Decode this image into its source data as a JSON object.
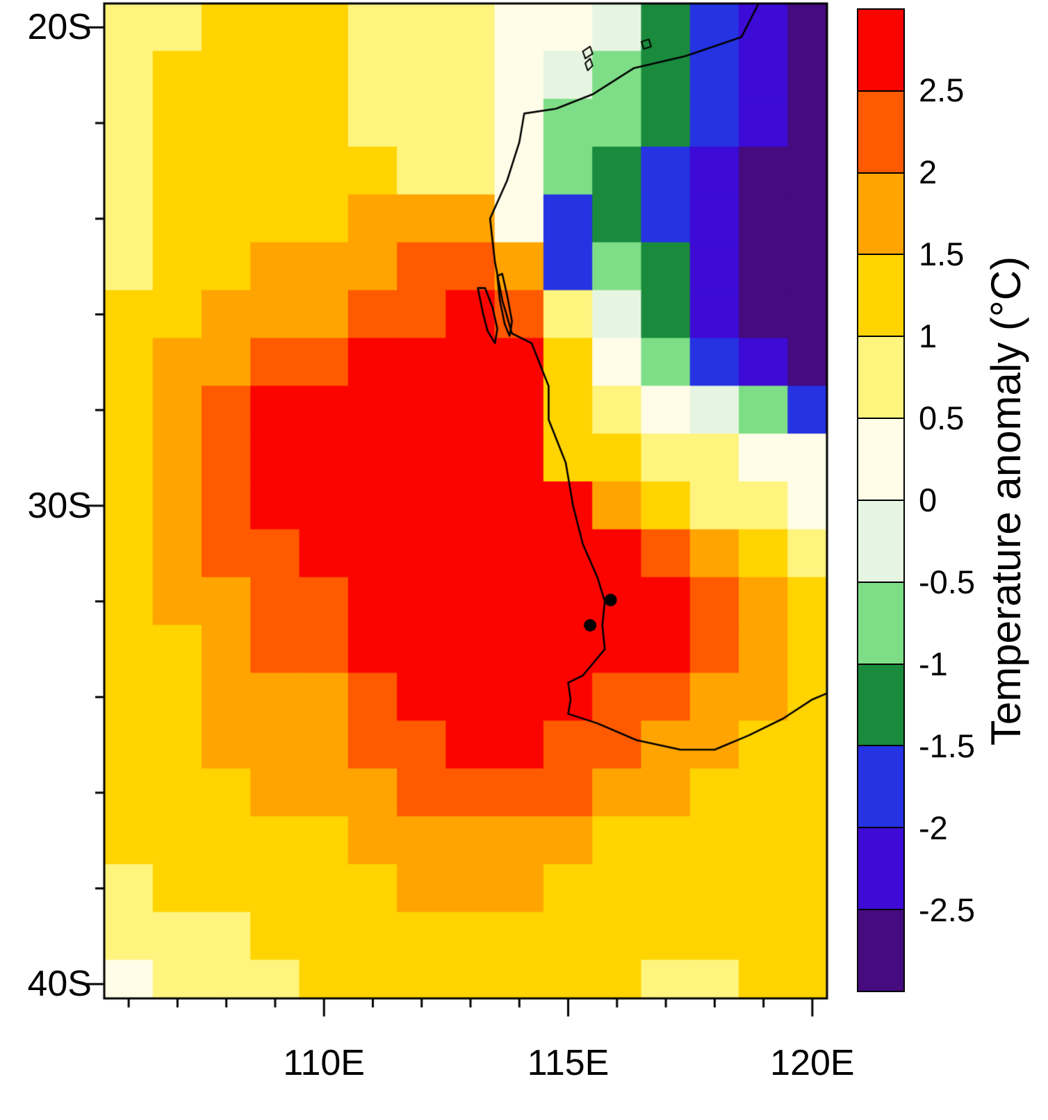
{
  "chart_data": {
    "type": "heatmap",
    "colorbar_label": "Temperature anomaly (°C)",
    "colorbar_tick_labels": [
      "2.5",
      "2",
      "1.5",
      "1",
      "0.5",
      "0",
      "-0.5",
      "-1",
      "-1.5",
      "-2",
      "-2.5"
    ],
    "levels": [
      -2.5,
      -2,
      -1.5,
      -1,
      -0.5,
      0,
      0.5,
      1,
      1.5,
      2,
      2.5
    ],
    "lon_range": [
      105.5,
      120.3
    ],
    "lat_range_south": [
      19.5,
      40.3
    ],
    "x_ticks": [
      {
        "lon": 110,
        "label": "110E"
      },
      {
        "lon": 115,
        "label": "115E"
      },
      {
        "lon": 120,
        "label": "120E"
      }
    ],
    "y_ticks": [
      {
        "lat": 20,
        "label": "20S"
      },
      {
        "lat": 30,
        "label": "30S"
      },
      {
        "lat": 40,
        "label": "40S"
      }
    ],
    "palette": [
      {
        "range": "< -2.5",
        "color": "#460B7E"
      },
      {
        "range": "-2.5 to -2",
        "color": "#3D0BD5"
      },
      {
        "range": "-2 to -1.5",
        "color": "#2533E2"
      },
      {
        "range": "-1.5 to -1",
        "color": "#1A8A3C"
      },
      {
        "range": "-1 to -0.5",
        "color": "#7EDE87"
      },
      {
        "range": "-0.5 to 0",
        "color": "#E6F5E1"
      },
      {
        "range": "0 to 0.5",
        "color": "#FFFDE7"
      },
      {
        "range": "0.5 to 1",
        "color": "#FFF47D"
      },
      {
        "range": "1 to 1.5",
        "color": "#FFD400"
      },
      {
        "range": "1.5 to 2",
        "color": "#FFA400"
      },
      {
        "range": "2 to 2.5",
        "color": "#FF5A00"
      },
      {
        "range": "> 2.5",
        "color": "#FB0400"
      }
    ],
    "grid": {
      "comment_units": "temperature anomaly class per 1-degree cell, west-to-east, north-to-south; chars index into class_chars -> palette",
      "lon_start": 105.5,
      "lat_start": 19.5,
      "cell_deg": 1.0,
      "ncols": 15,
      "nrows": 21,
      "class_chars": "0123456789AB",
      "rows": [
        "778887776653210",
        "788887776543210",
        "788887776443210",
        "788888776432100",
        "788889996232100",
        "788999AA9243100",
        "88999AABA753100",
        "899AABBBB864210",
        "89ABBBBBB876542",
        "89ABBBBBB887766",
        "89ABBBBBBB98776",
        "89AABBBBBBBA987",
        "899AABBBBBBBA98",
        "889AABBBBBBBA98",
        "88999ABBBBAA998",
        "88999AABBAA9988",
        "888999AAAA99888",
        "888889999988888",
        "788888999888888",
        "777888888888888",
        "677788888887788"
      ]
    },
    "coastline": [
      [
        118.9,
        19.5
      ],
      [
        118.55,
        20.2
      ],
      [
        117.4,
        20.6
      ],
      [
        116.35,
        20.85
      ],
      [
        115.5,
        21.4
      ],
      [
        114.75,
        21.7
      ],
      [
        114.1,
        21.8
      ],
      [
        114.0,
        22.4
      ],
      [
        113.75,
        23.2
      ],
      [
        113.4,
        24.0
      ],
      [
        113.5,
        24.9
      ],
      [
        113.65,
        25.7
      ],
      [
        113.85,
        26.4
      ],
      [
        114.25,
        26.6
      ],
      [
        114.6,
        27.5
      ],
      [
        114.6,
        28.2
      ],
      [
        114.95,
        29.1
      ],
      [
        115.1,
        30.0
      ],
      [
        115.3,
        30.8
      ],
      [
        115.6,
        31.5
      ],
      [
        115.75,
        32.0
      ],
      [
        115.7,
        32.5
      ],
      [
        115.75,
        33.0
      ],
      [
        115.3,
        33.55
      ],
      [
        115.0,
        33.7
      ],
      [
        115.05,
        34.05
      ],
      [
        115.0,
        34.35
      ],
      [
        115.6,
        34.55
      ],
      [
        116.4,
        34.9
      ],
      [
        117.3,
        35.1
      ],
      [
        118.0,
        35.1
      ],
      [
        118.7,
        34.8
      ],
      [
        119.4,
        34.45
      ],
      [
        120.0,
        34.05
      ],
      [
        120.35,
        33.9
      ]
    ],
    "peninsulas": [
      [
        [
          113.15,
          25.45
        ],
        [
          113.25,
          25.95
        ],
        [
          113.35,
          26.35
        ],
        [
          113.5,
          26.6
        ],
        [
          113.55,
          26.3
        ],
        [
          113.45,
          25.85
        ],
        [
          113.3,
          25.45
        ],
        [
          113.15,
          25.45
        ]
      ],
      [
        [
          113.55,
          25.2
        ],
        [
          113.6,
          25.7
        ],
        [
          113.7,
          26.2
        ],
        [
          113.8,
          26.45
        ],
        [
          113.85,
          26.15
        ],
        [
          113.75,
          25.6
        ],
        [
          113.65,
          25.15
        ],
        [
          113.55,
          25.2
        ]
      ]
    ],
    "islands": [
      [
        [
          115.3,
          20.5
        ],
        [
          115.45,
          20.4
        ],
        [
          115.5,
          20.55
        ],
        [
          115.35,
          20.65
        ],
        [
          115.3,
          20.5
        ]
      ],
      [
        [
          115.35,
          20.75
        ],
        [
          115.45,
          20.65
        ],
        [
          115.5,
          20.8
        ],
        [
          115.4,
          20.9
        ],
        [
          115.35,
          20.75
        ]
      ],
      [
        [
          116.5,
          20.3
        ],
        [
          116.65,
          20.25
        ],
        [
          116.7,
          20.4
        ],
        [
          116.55,
          20.45
        ],
        [
          116.5,
          20.3
        ]
      ]
    ],
    "station_markers": [
      [
        115.87,
        31.97
      ],
      [
        115.45,
        32.5
      ]
    ]
  }
}
